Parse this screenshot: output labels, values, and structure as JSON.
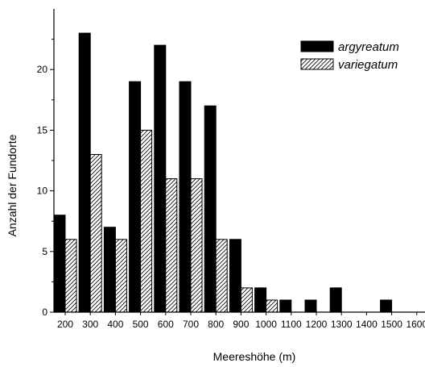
{
  "chart_data": {
    "type": "bar",
    "title": "",
    "xlabel": "Meereshöhe (m)",
    "ylabel": "Anzahl der Fundorte",
    "categories": [
      "200",
      "300",
      "400",
      "500",
      "600",
      "700",
      "800",
      "900",
      "1000",
      "1100",
      "1200",
      "1300",
      "1400",
      "1500",
      "1600"
    ],
    "series": [
      {
        "name": "argyreatum",
        "pattern": "solid",
        "color": "#000000",
        "values": [
          8,
          23,
          7,
          19,
          22,
          19,
          17,
          6,
          2,
          1,
          1,
          2,
          0,
          1,
          0
        ]
      },
      {
        "name": "variegatum",
        "pattern": "diagonal-hatch",
        "color": "#000000",
        "values": [
          6,
          13,
          6,
          15,
          11,
          11,
          6,
          2,
          1,
          0,
          0,
          0,
          0,
          0,
          0
        ]
      }
    ],
    "ylim": [
      0,
      25
    ],
    "yticks": [
      "0",
      "5",
      "10",
      "15",
      "20"
    ],
    "grid": false,
    "legend_position": "top-right"
  }
}
